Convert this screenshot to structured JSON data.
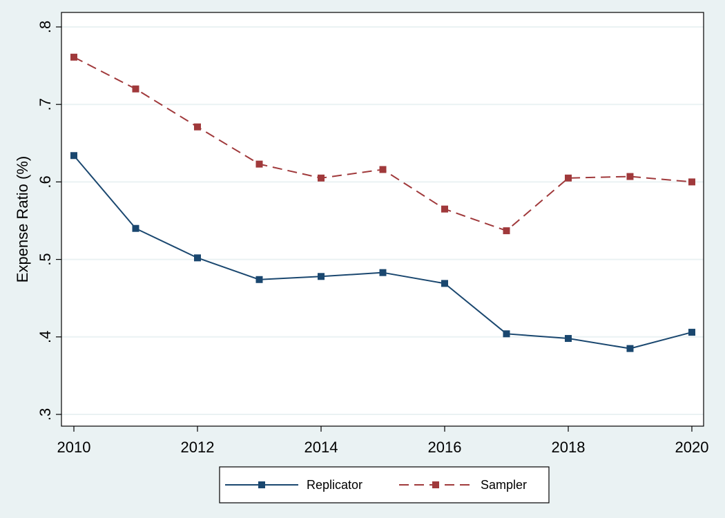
{
  "chart_data": {
    "type": "line",
    "title": "",
    "xlabel": "",
    "ylabel": "Expense Ratio (%)",
    "x": [
      2010,
      2011,
      2012,
      2013,
      2014,
      2015,
      2016,
      2017,
      2018,
      2019,
      2020
    ],
    "xlim": [
      2010,
      2020
    ],
    "ylim": [
      0.3,
      0.8
    ],
    "x_ticks": [
      2010,
      2012,
      2014,
      2016,
      2018,
      2020
    ],
    "x_tick_labels": [
      "2010",
      "2012",
      "2014",
      "2016",
      "2018",
      "2020"
    ],
    "y_ticks": [
      0.3,
      0.4,
      0.5,
      0.6,
      0.7,
      0.8
    ],
    "y_tick_labels": [
      ".3",
      ".4",
      ".5",
      ".6",
      ".7",
      ".8"
    ],
    "grid": "horizontal",
    "legend_position": "bottom",
    "series": [
      {
        "name": "Replicator",
        "color": "#1a476f",
        "line_style": "solid",
        "marker": "square",
        "values": [
          0.634,
          0.54,
          0.502,
          0.474,
          0.478,
          0.483,
          0.469,
          0.404,
          0.398,
          0.385,
          0.406
        ]
      },
      {
        "name": "Sampler",
        "color": "#a0393b",
        "line_style": "dashed",
        "marker": "square",
        "values": [
          0.761,
          0.72,
          0.671,
          0.623,
          0.605,
          0.616,
          0.565,
          0.537,
          0.605,
          0.607,
          0.6
        ]
      }
    ]
  }
}
